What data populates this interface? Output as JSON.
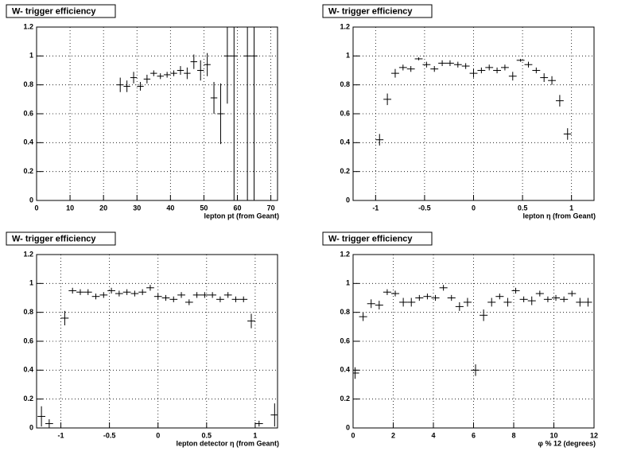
{
  "chart_data": [
    {
      "type": "errorbar",
      "title": "W- trigger efficiency",
      "x_label": "lepton pt (from Geant)",
      "x": [
        25,
        27,
        29,
        31,
        33,
        35,
        37,
        39,
        41,
        43,
        45,
        47,
        49,
        51,
        53,
        55,
        57,
        59,
        63,
        65
      ],
      "values": [
        0.8,
        0.79,
        0.85,
        0.79,
        0.84,
        0.88,
        0.86,
        0.87,
        0.88,
        0.9,
        0.88,
        0.96,
        0.9,
        0.94,
        0.71,
        0.6,
        1,
        1,
        1,
        1
      ],
      "errors": [
        0.05,
        0.04,
        0.04,
        0.03,
        0.03,
        0.02,
        0.02,
        0.02,
        0.02,
        0.03,
        0.04,
        0.05,
        0.07,
        0.08,
        0.11,
        0.21,
        0.33,
        1,
        1,
        1
      ],
      "xerr": 1,
      "xlim": [
        0,
        72
      ],
      "ylim": [
        0,
        1.2
      ],
      "xticks": [
        0,
        10,
        20,
        30,
        40,
        50,
        60,
        70
      ],
      "yticks": [
        0,
        0.2,
        0.4,
        0.6,
        0.8,
        1,
        1.2
      ],
      "grid": true,
      "color": "#000000"
    },
    {
      "type": "errorbar",
      "title": "W- trigger efficiency",
      "x_label": "lepton η (from Geant)",
      "x": [
        -0.96,
        -0.88,
        -0.8,
        -0.72,
        -0.64,
        -0.56,
        -0.48,
        -0.4,
        -0.32,
        -0.24,
        -0.16,
        -0.08,
        0,
        0.08,
        0.16,
        0.24,
        0.32,
        0.4,
        0.48,
        0.56,
        0.64,
        0.72,
        0.8,
        0.88,
        0.96
      ],
      "values": [
        0.42,
        0.7,
        0.88,
        0.92,
        0.91,
        0.98,
        0.94,
        0.91,
        0.95,
        0.95,
        0.94,
        0.93,
        0.88,
        0.9,
        0.92,
        0.9,
        0.92,
        0.86,
        0.97,
        0.94,
        0.9,
        0.85,
        0.83,
        0.69,
        0.46
      ],
      "errors": [
        0.04,
        0.04,
        0.03,
        0.02,
        0.02,
        0.01,
        0.02,
        0.02,
        0.02,
        0.02,
        0.02,
        0.02,
        0.03,
        0.02,
        0.02,
        0.02,
        0.02,
        0.03,
        0.01,
        0.02,
        0.02,
        0.03,
        0.03,
        0.04,
        0.04
      ],
      "xerr": 0.04,
      "xlim": [
        -1.23,
        1.23
      ],
      "ylim": [
        0,
        1.2
      ],
      "xticks": [
        -1,
        -0.5,
        0,
        0.5,
        1
      ],
      "yticks": [
        0,
        0.2,
        0.4,
        0.6,
        0.8,
        1,
        1.2
      ],
      "grid": true,
      "color": "#000000"
    },
    {
      "type": "errorbar",
      "title": "W- trigger efficiency",
      "x_label": "lepton detector η (from Geant)",
      "x": [
        -1.2,
        -1.12,
        -0.96,
        -0.88,
        -0.8,
        -0.72,
        -0.64,
        -0.56,
        -0.48,
        -0.4,
        -0.32,
        -0.24,
        -0.16,
        -0.08,
        0,
        0.08,
        0.16,
        0.24,
        0.32,
        0.4,
        0.48,
        0.56,
        0.64,
        0.72,
        0.8,
        0.88,
        0.96,
        1.04,
        1.2
      ],
      "values": [
        0.08,
        0.03,
        0.76,
        0.95,
        0.94,
        0.94,
        0.91,
        0.92,
        0.95,
        0.93,
        0.94,
        0.93,
        0.94,
        0.97,
        0.91,
        0.9,
        0.89,
        0.92,
        0.87,
        0.92,
        0.92,
        0.92,
        0.89,
        0.92,
        0.89,
        0.89,
        0.74,
        0.03,
        0.09
      ],
      "errors": [
        0.07,
        0.03,
        0.05,
        0.02,
        0.02,
        0.02,
        0.02,
        0.02,
        0.02,
        0.02,
        0.02,
        0.02,
        0.02,
        0.02,
        0.02,
        0.02,
        0.02,
        0.02,
        0.02,
        0.02,
        0.02,
        0.02,
        0.02,
        0.02,
        0.02,
        0.02,
        0.05,
        0.02,
        0.08
      ],
      "xerr": 0.04,
      "xlim": [
        -1.25,
        1.23
      ],
      "ylim": [
        0,
        1.2
      ],
      "xticks": [
        -1,
        -0.5,
        0,
        0.5,
        1
      ],
      "yticks": [
        0,
        0.2,
        0.4,
        0.6,
        0.8,
        1,
        1.2
      ],
      "grid": true,
      "color": "#000000"
    },
    {
      "type": "errorbar",
      "title": "W- trigger efficiency",
      "x_label": "φ % 12 (degrees)",
      "x": [
        0.1,
        0.5,
        0.9,
        1.3,
        1.7,
        2.1,
        2.5,
        2.9,
        3.3,
        3.7,
        4.1,
        4.5,
        4.9,
        5.3,
        5.7,
        6.1,
        6.5,
        6.9,
        7.3,
        7.7,
        8.1,
        8.5,
        8.9,
        9.3,
        9.7,
        10.1,
        10.5,
        10.9,
        11.3,
        11.7
      ],
      "values": [
        0.38,
        0.77,
        0.86,
        0.85,
        0.94,
        0.93,
        0.87,
        0.87,
        0.9,
        0.91,
        0.9,
        0.97,
        0.9,
        0.84,
        0.87,
        0.4,
        0.78,
        0.87,
        0.91,
        0.87,
        0.95,
        0.89,
        0.88,
        0.93,
        0.89,
        0.9,
        0.89,
        0.93,
        0.87,
        0.87
      ],
      "errors": [
        0.04,
        0.03,
        0.03,
        0.03,
        0.02,
        0.02,
        0.03,
        0.03,
        0.02,
        0.02,
        0.02,
        0.02,
        0.02,
        0.03,
        0.03,
        0.04,
        0.04,
        0.03,
        0.02,
        0.03,
        0.02,
        0.02,
        0.03,
        0.02,
        0.02,
        0.02,
        0.02,
        0.02,
        0.03,
        0.03
      ],
      "xerr": 0.2,
      "xlim": [
        0,
        12
      ],
      "ylim": [
        0,
        1.2
      ],
      "xticks": [
        0,
        2,
        4,
        6,
        8,
        10,
        12
      ],
      "yticks": [
        0,
        0.2,
        0.4,
        0.6,
        0.8,
        1,
        1.2
      ],
      "grid": true,
      "color": "#000000"
    }
  ]
}
